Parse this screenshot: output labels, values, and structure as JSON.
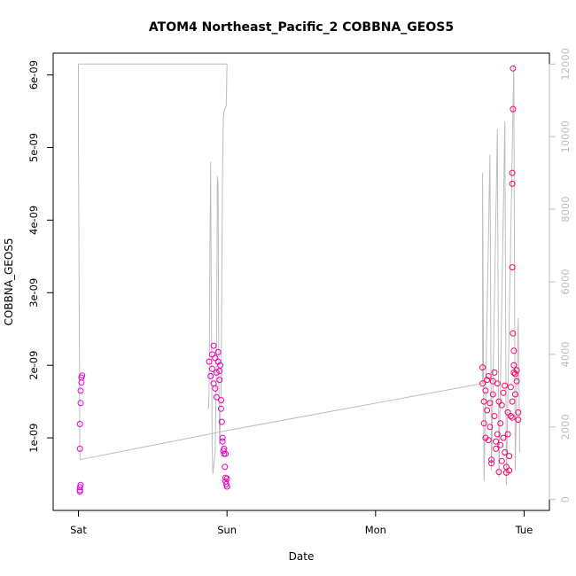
{
  "chart_data": {
    "type": "scatter",
    "title": "ATOM4 Northeast_Pacific_2 COBBNA_GEOS5",
    "xlabel": "Date",
    "ylabel": "COBBNA_GEOS5",
    "x_ticks": [
      "Sat",
      "Sun",
      "Mon",
      "Tue"
    ],
    "x_tick_positions_days": [
      0,
      1,
      2,
      3
    ],
    "xlim_days": [
      -0.17,
      3.17
    ],
    "ylim": [
      0,
      6.3e-09
    ],
    "y_ticks": [
      1e-09,
      2e-09,
      3e-09,
      4e-09,
      5e-09,
      6e-09
    ],
    "y_tick_labels": [
      "1e-09",
      "2e-09",
      "3e-09",
      "4e-09",
      "5e-09",
      "6e-09"
    ],
    "right_axis": {
      "ylim": [
        -300,
        12300
      ],
      "ticks": [
        0,
        2000,
        4000,
        6000,
        8000,
        10000,
        12000
      ],
      "tick_labels": [
        "0",
        "2000",
        "4000",
        "6000",
        "8000",
        "10000",
        "12000"
      ],
      "color": "#bdbdbd"
    },
    "grid": false,
    "legend": "none",
    "colors": {
      "points_start": "#e600e6",
      "points_end": "#ff0066",
      "line": "#bdbdbd"
    },
    "series": [
      {
        "type": "scatter",
        "axis": "left",
        "points": [
          [
            0.01,
            2.8e-10
          ],
          [
            0.01,
            3.2e-10
          ],
          [
            0.01,
            2.6e-10
          ],
          [
            0.015,
            3.5e-10
          ],
          [
            0.01,
            8.5e-10
          ],
          [
            0.01,
            1.19e-09
          ],
          [
            0.015,
            1.48e-09
          ],
          [
            0.015,
            1.65e-09
          ],
          [
            0.02,
            1.76e-09
          ],
          [
            0.02,
            1.83e-09
          ],
          [
            0.025,
            1.86e-09
          ],
          [
            0.88,
            2.05e-09
          ],
          [
            0.89,
            1.85e-09
          ],
          [
            0.9,
            1.95e-09
          ],
          [
            0.9,
            2.15e-09
          ],
          [
            0.91,
            2.27e-09
          ],
          [
            0.91,
            1.75e-09
          ],
          [
            0.92,
            1.68e-09
          ],
          [
            0.92,
            2.1e-09
          ],
          [
            0.93,
            1.9e-09
          ],
          [
            0.93,
            1.56e-09
          ],
          [
            0.94,
            2.05e-09
          ],
          [
            0.94,
            2.18e-09
          ],
          [
            0.95,
            1.8e-09
          ],
          [
            0.95,
            1.92e-09
          ],
          [
            0.955,
            2e-09
          ],
          [
            0.96,
            1.52e-09
          ],
          [
            0.96,
            1.4e-09
          ],
          [
            0.965,
            1.22e-09
          ],
          [
            0.97,
            1e-09
          ],
          [
            0.97,
            9.5e-10
          ],
          [
            0.975,
            8.2e-10
          ],
          [
            0.98,
            7.8e-10
          ],
          [
            0.98,
            8.5e-10
          ],
          [
            0.985,
            6e-10
          ],
          [
            0.99,
            4.5e-10
          ],
          [
            0.99,
            4e-10
          ],
          [
            0.995,
            3.6e-10
          ],
          [
            1.0,
            3.3e-10
          ],
          [
            0.99,
            7.8e-10
          ],
          [
            1.0,
            4.4e-10
          ],
          [
            2.72,
            1.97e-09
          ],
          [
            2.72,
            1.75e-09
          ],
          [
            2.73,
            1.5e-09
          ],
          [
            2.73,
            1.2e-09
          ],
          [
            2.74,
            1e-09
          ],
          [
            2.74,
            1.65e-09
          ],
          [
            2.75,
            1.8e-09
          ],
          [
            2.75,
            1.38e-09
          ],
          [
            2.76,
            1.85e-09
          ],
          [
            2.76,
            9.7e-10
          ],
          [
            2.77,
            1.15e-09
          ],
          [
            2.77,
            1.48e-09
          ],
          [
            2.78,
            7e-10
          ],
          [
            2.78,
            6.5e-10
          ],
          [
            2.79,
            1.78e-09
          ],
          [
            2.79,
            1.6e-09
          ],
          [
            2.8,
            1.9e-09
          ],
          [
            2.8,
            1.3e-09
          ],
          [
            2.81,
            9.5e-10
          ],
          [
            2.81,
            8.5e-10
          ],
          [
            2.82,
            1.05e-09
          ],
          [
            2.82,
            1.75e-09
          ],
          [
            2.83,
            1.5e-09
          ],
          [
            2.83,
            5.3e-10
          ],
          [
            2.84,
            1.2e-09
          ],
          [
            2.84,
            9e-10
          ],
          [
            2.85,
            1.45e-09
          ],
          [
            2.85,
            6.8e-10
          ],
          [
            2.86,
            1e-09
          ],
          [
            2.86,
            1.62e-09
          ],
          [
            2.87,
            1.72e-09
          ],
          [
            2.87,
            8e-10
          ],
          [
            2.88,
            6e-10
          ],
          [
            2.88,
            5.2e-10
          ],
          [
            2.89,
            1.35e-09
          ],
          [
            2.89,
            1.05e-09
          ],
          [
            2.9,
            5.5e-10
          ],
          [
            2.9,
            7.5e-10
          ],
          [
            2.91,
            1.7e-09
          ],
          [
            2.91,
            1.3e-09
          ],
          [
            2.92,
            1.28e-09
          ],
          [
            2.93,
            1.9e-09
          ],
          [
            2.93,
            2e-09
          ],
          [
            2.93,
            2.2e-09
          ],
          [
            2.92,
            1.5e-09
          ],
          [
            2.925,
            2.44e-09
          ],
          [
            2.92,
            3.35e-09
          ],
          [
            2.92,
            4.5e-09
          ],
          [
            2.92,
            4.65e-09
          ],
          [
            2.925,
            5.53e-09
          ],
          [
            2.925,
            6.09e-09
          ],
          [
            2.94,
            1.6e-09
          ],
          [
            2.95,
            1.78e-09
          ],
          [
            2.95,
            1.93e-09
          ],
          [
            2.96,
            1.35e-09
          ],
          [
            2.96,
            1.25e-09
          ],
          [
            2.94,
            1.88e-09
          ]
        ]
      },
      {
        "type": "line",
        "axis": "right",
        "name": "",
        "points": [
          [
            0.0,
            12000
          ],
          [
            0.0,
            10000
          ],
          [
            0.01,
            1100.0
          ],
          [
            1.0,
            1900.0
          ],
          [
            2.72,
            3200.0
          ],
          [
            2.72,
            9000.0
          ],
          [
            2.73,
            500.0
          ],
          [
            2.77,
            9500.0
          ],
          [
            2.78,
            800.0
          ],
          [
            2.82,
            10200.0
          ],
          [
            2.83,
            600.0
          ],
          [
            2.87,
            10400.0
          ],
          [
            2.88,
            400.0
          ],
          [
            2.93,
            12000.0
          ],
          [
            2.94,
            800.0
          ],
          [
            2.96,
            5000.0
          ],
          [
            2.97,
            1300.0
          ]
        ],
        "extra_segments": [
          [
            [
              0.0,
              12000
            ],
            [
              1.0,
              12000
            ]
          ],
          [
            [
              1.0,
              12000
            ],
            [
              0.995,
              10850
            ],
            [
              0.98,
              10700
            ],
            [
              0.975,
              10500
            ],
            [
              0.97,
              9000
            ],
            [
              0.965,
              6000
            ],
            [
              0.96,
              3000
            ],
            [
              0.95,
              1500
            ],
            [
              0.945,
              3500
            ],
            [
              0.94,
              8700
            ],
            [
              0.935,
              8900
            ],
            [
              0.93,
              4000
            ],
            [
              0.92,
              1300
            ],
            [
              0.905,
              700
            ],
            [
              0.9,
              1500
            ],
            [
              0.895,
              5000
            ],
            [
              0.89,
              9300
            ],
            [
              0.885,
              7000
            ],
            [
              0.88,
              3000
            ],
            [
              0.875,
              2500
            ]
          ]
        ]
      }
    ]
  }
}
